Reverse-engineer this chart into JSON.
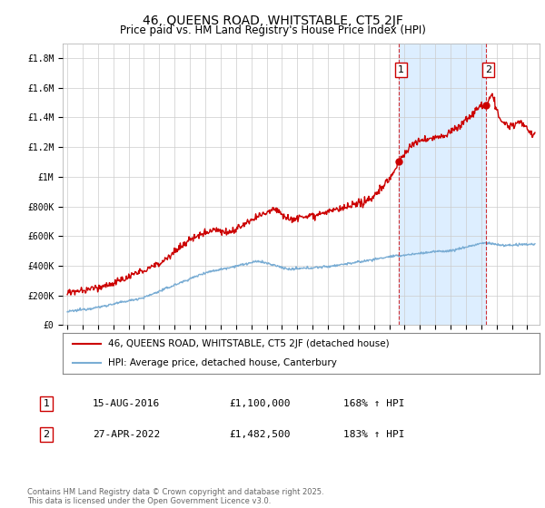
{
  "title": "46, QUEENS ROAD, WHITSTABLE, CT5 2JF",
  "subtitle": "Price paid vs. HM Land Registry's House Price Index (HPI)",
  "ylabel_ticks": [
    "£0",
    "£200K",
    "£400K",
    "£600K",
    "£800K",
    "£1M",
    "£1.2M",
    "£1.4M",
    "£1.6M",
    "£1.8M"
  ],
  "ytick_values": [
    0,
    200000,
    400000,
    600000,
    800000,
    1000000,
    1200000,
    1400000,
    1600000,
    1800000
  ],
  "ylim": [
    0,
    1900000
  ],
  "xlim_start": 1994.7,
  "xlim_end": 2025.8,
  "xtick_years": [
    1995,
    1996,
    1997,
    1998,
    1999,
    2000,
    2001,
    2002,
    2003,
    2004,
    2005,
    2006,
    2007,
    2008,
    2009,
    2010,
    2011,
    2012,
    2013,
    2014,
    2015,
    2016,
    2017,
    2018,
    2019,
    2020,
    2021,
    2022,
    2023,
    2024,
    2025
  ],
  "red_line_color": "#cc0000",
  "blue_line_color": "#7aadd4",
  "shade_color": "#ddeeff",
  "marker1_x": 2016.62,
  "marker1_y": 1100000,
  "marker2_x": 2022.32,
  "marker2_y": 1482500,
  "dashed_line1_x": 2016.62,
  "dashed_line2_x": 2022.32,
  "legend_red_label": "46, QUEENS ROAD, WHITSTABLE, CT5 2JF (detached house)",
  "legend_blue_label": "HPI: Average price, detached house, Canterbury",
  "annotation1_num": "1",
  "annotation2_num": "2",
  "table_row1": [
    "1",
    "15-AUG-2016",
    "£1,100,000",
    "168% ↑ HPI"
  ],
  "table_row2": [
    "2",
    "27-APR-2022",
    "£1,482,500",
    "183% ↑ HPI"
  ],
  "footer": "Contains HM Land Registry data © Crown copyright and database right 2025.\nThis data is licensed under the Open Government Licence v3.0.",
  "plot_bg_color": "#ffffff",
  "grid_color": "#cccccc",
  "title_fontsize": 10,
  "subtitle_fontsize": 8.5,
  "tick_fontsize": 7
}
